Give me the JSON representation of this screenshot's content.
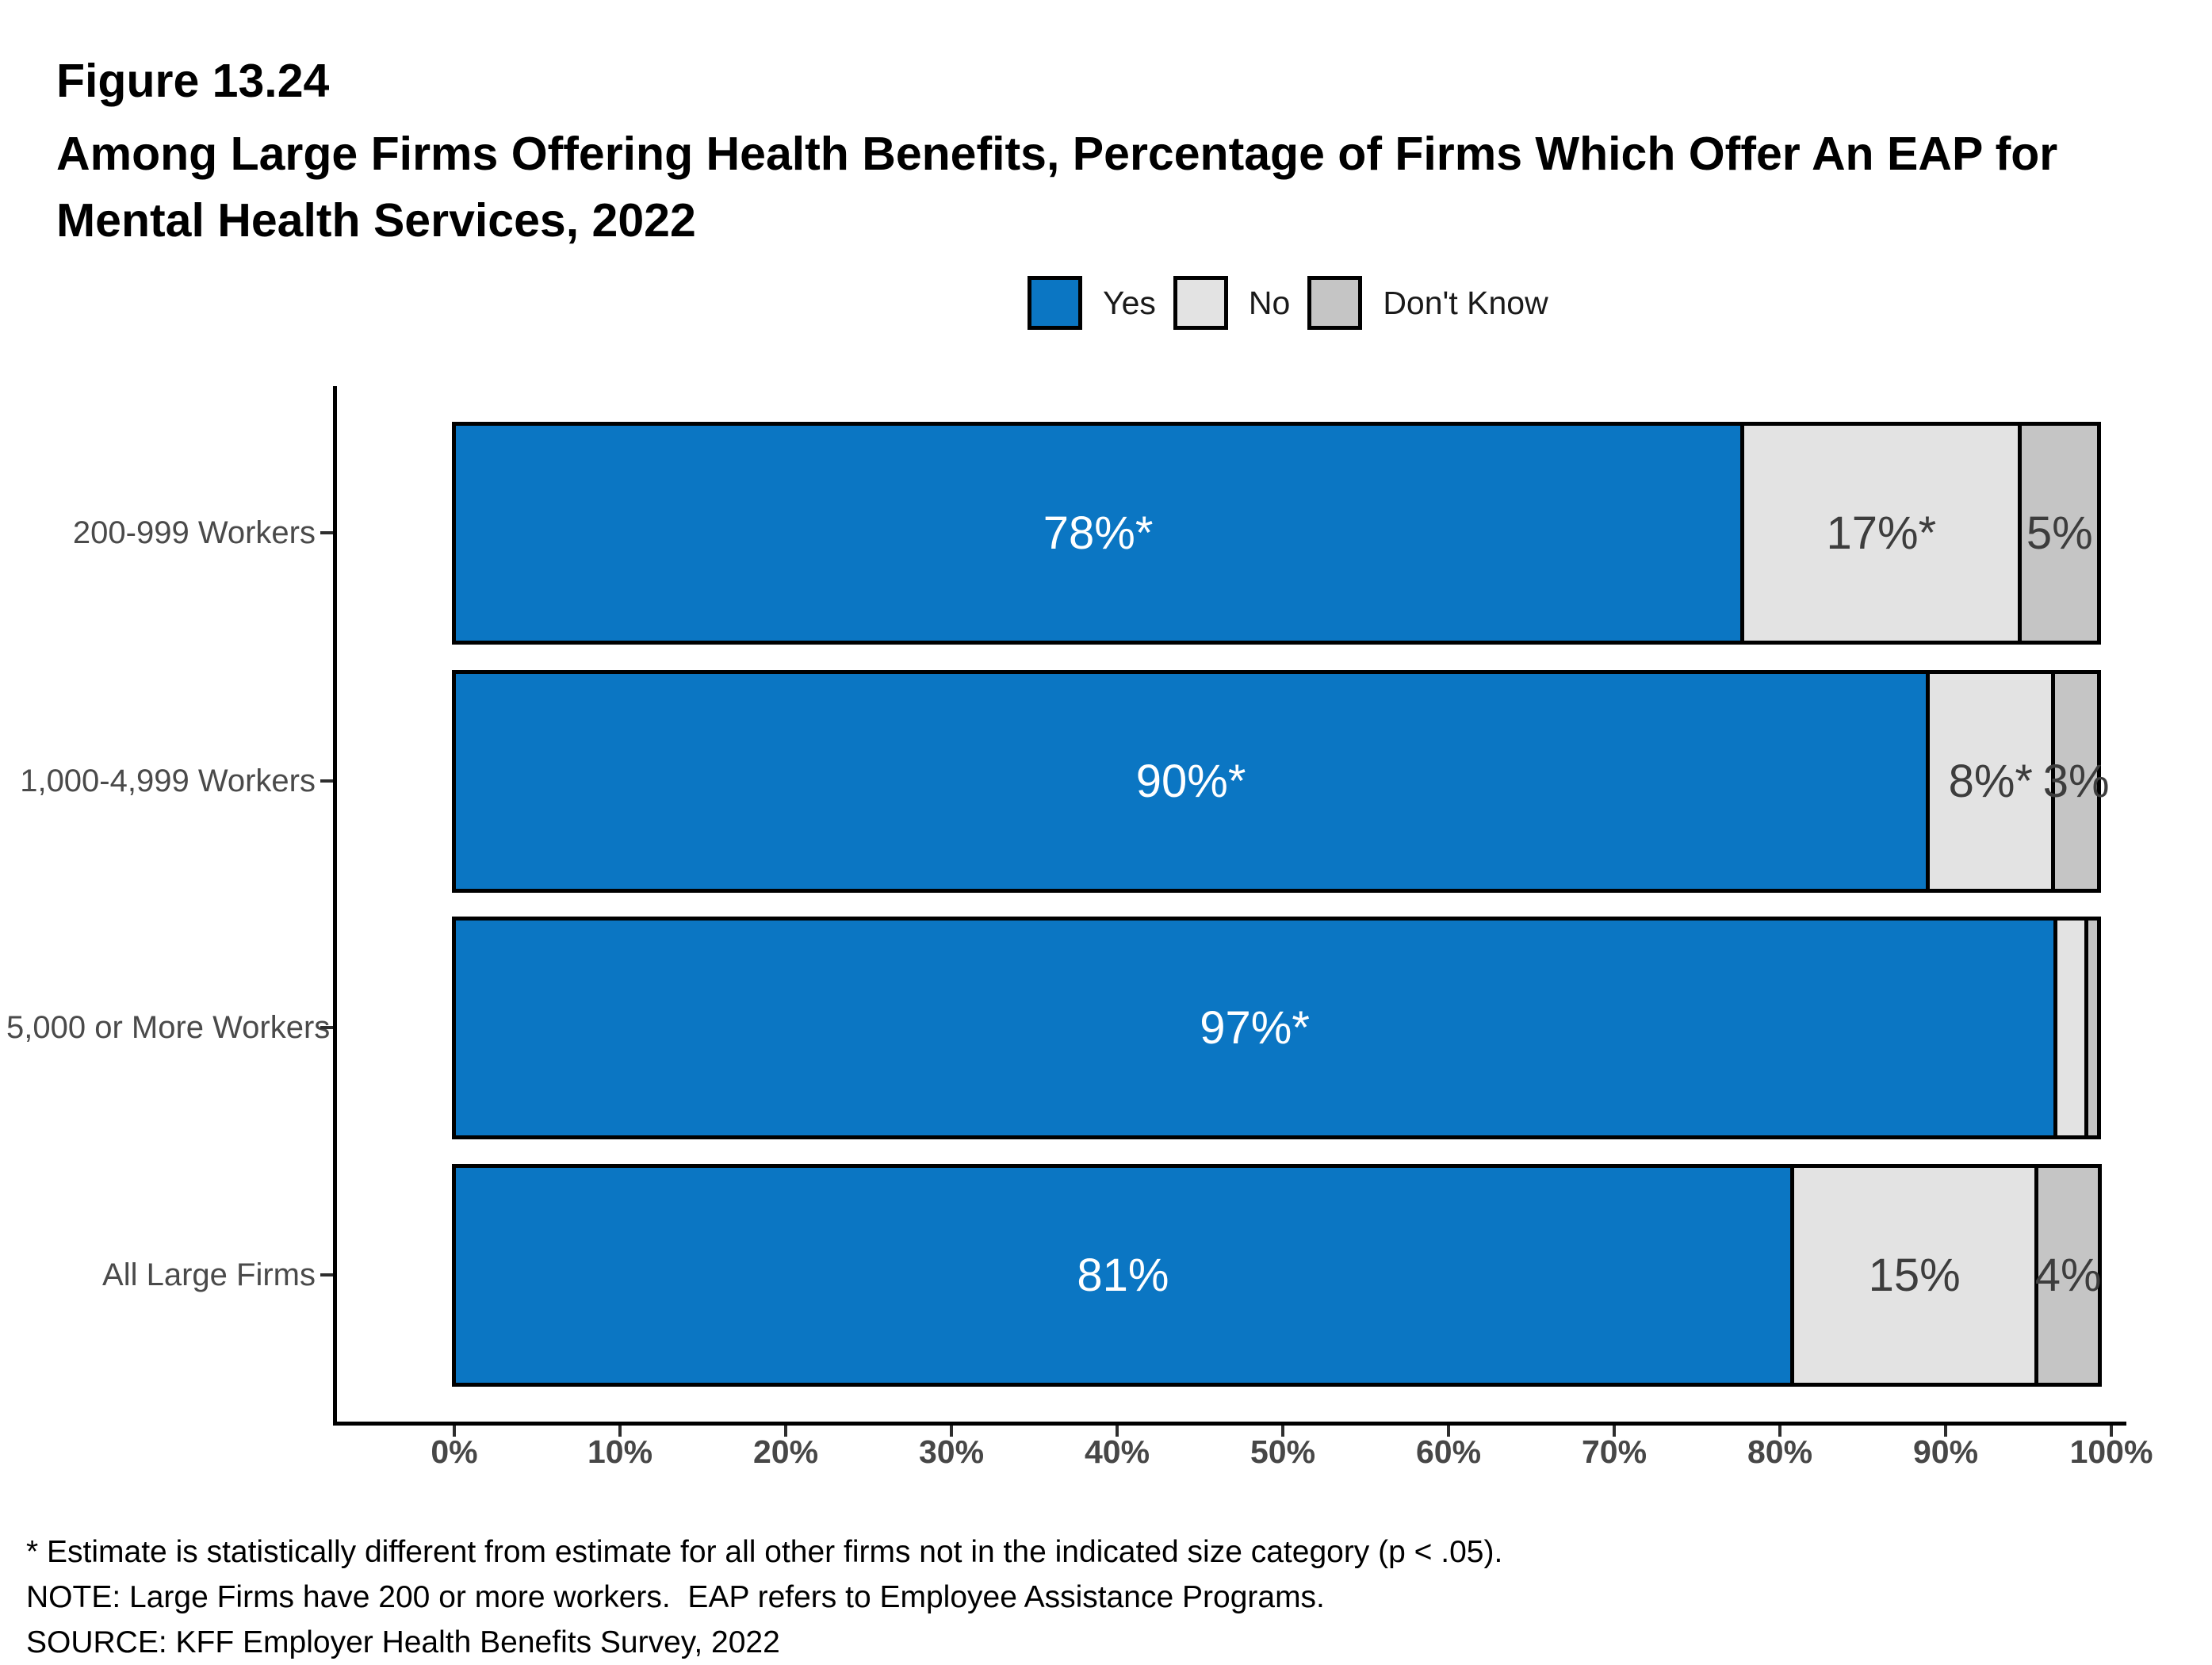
{
  "header": {
    "figure_label": "Figure 13.24",
    "title_line1": "Among Large Firms Offering Health Benefits, Percentage of Firms Which Offer An EAP for",
    "title_line2": "Mental Health Services, 2022"
  },
  "legend": {
    "items": [
      {
        "label": "Yes",
        "color": "#0B76C3"
      },
      {
        "label": "No",
        "color": "#E3E3E3"
      },
      {
        "label": "Don't Know",
        "color": "#C5C5C5"
      }
    ]
  },
  "chart_data": {
    "type": "bar",
    "orientation": "horizontal_stacked",
    "title": "Among Large Firms Offering Health Benefits, Percentage of Firms Which Offer An EAP for Mental Health Services, 2022",
    "categories": [
      "200-999 Workers",
      "1,000-4,999 Workers",
      "5,000 or More Workers",
      "All Large Firms"
    ],
    "series": [
      {
        "name": "Yes",
        "color": "#0B76C3",
        "label_color": "#ffffff",
        "values": [
          78,
          90,
          97,
          81
        ],
        "labels": [
          "78%*",
          "90%*",
          "97%*",
          "81%"
        ]
      },
      {
        "name": "No",
        "color": "#E3E3E3",
        "label_color": "#3d3d3d",
        "values": [
          17,
          8,
          2,
          15
        ],
        "labels": [
          "17%*",
          "8%*",
          "",
          "15%"
        ]
      },
      {
        "name": "Don't Know",
        "color": "#C5C5C5",
        "label_color": "#3d3d3d",
        "values": [
          5,
          3,
          1,
          4
        ],
        "labels": [
          "5%",
          "3%",
          "",
          "4%"
        ]
      }
    ],
    "drawn_pct": [
      [
        78.0,
        17.0,
        5.0
      ],
      [
        89.2,
        7.8,
        3.0
      ],
      [
        96.9,
        2.1,
        1.0
      ],
      [
        81.0,
        15.0,
        4.05
      ]
    ],
    "xlim": [
      0,
      100
    ],
    "x_ticks": [
      "0%",
      "10%",
      "20%",
      "30%",
      "40%",
      "50%",
      "60%",
      "70%",
      "80%",
      "90%",
      "100%"
    ],
    "grid": false,
    "legend_position": "top-center"
  },
  "footnotes": [
    "* Estimate is statistically different from estimate for all other firms not in the indicated size category (p < .05).",
    "NOTE: Large Firms have 200 or more workers.  EAP refers to Employee Assistance Programs.",
    "SOURCE: KFF Employer Health Benefits Survey, 2022"
  ]
}
